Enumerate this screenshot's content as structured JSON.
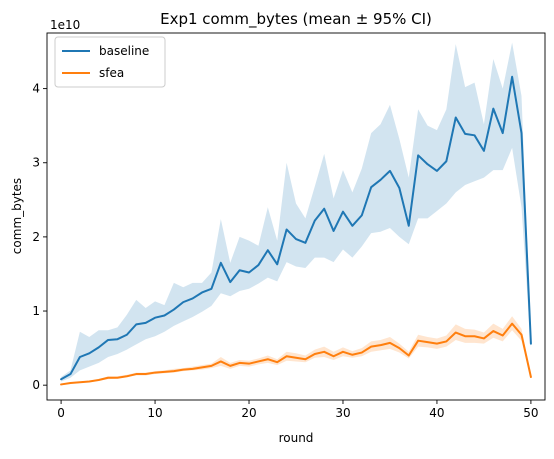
{
  "chart_data": {
    "type": "line",
    "title": "Exp1 comm_bytes (mean ± 95% CI)",
    "xlabel": "round",
    "ylabel": "comm_bytes",
    "y_scale_label": "1e10",
    "xlim": [
      -1.5,
      51.5
    ],
    "ylim": [
      -0.2,
      4.75
    ],
    "x_ticks": [
      0,
      10,
      20,
      30,
      40,
      50
    ],
    "y_ticks": [
      0,
      1,
      2,
      3,
      4
    ],
    "grid": false,
    "legend_position": "top-left",
    "x": [
      0,
      1,
      2,
      3,
      4,
      5,
      6,
      7,
      8,
      9,
      10,
      11,
      12,
      13,
      14,
      15,
      16,
      17,
      18,
      19,
      20,
      21,
      22,
      23,
      24,
      25,
      26,
      27,
      28,
      29,
      30,
      31,
      32,
      33,
      34,
      35,
      36,
      37,
      38,
      39,
      40,
      41,
      42,
      43,
      44,
      45,
      46,
      47,
      48,
      49,
      50
    ],
    "series": [
      {
        "name": "baseline",
        "color": "#1f77b4",
        "band_color": "#1f77b4",
        "values": [
          0.08,
          0.15,
          0.38,
          0.43,
          0.51,
          0.61,
          0.62,
          0.68,
          0.82,
          0.84,
          0.91,
          0.94,
          1.02,
          1.12,
          1.17,
          1.25,
          1.3,
          1.65,
          1.39,
          1.55,
          1.52,
          1.62,
          1.82,
          1.63,
          2.1,
          1.97,
          1.92,
          2.22,
          2.38,
          2.08,
          2.34,
          2.15,
          2.29,
          2.67,
          2.77,
          2.89,
          2.66,
          2.15,
          3.1,
          2.98,
          2.89,
          3.02,
          3.61,
          3.39,
          3.37,
          3.16,
          3.73,
          3.4,
          4.16,
          3.4,
          0.56
        ],
        "ci_low": [
          0.05,
          0.1,
          0.2,
          0.25,
          0.3,
          0.38,
          0.42,
          0.48,
          0.55,
          0.62,
          0.66,
          0.72,
          0.8,
          0.86,
          0.92,
          0.99,
          1.07,
          1.24,
          1.2,
          1.27,
          1.3,
          1.37,
          1.45,
          1.4,
          1.66,
          1.6,
          1.58,
          1.72,
          1.72,
          1.66,
          1.83,
          1.72,
          1.87,
          2.05,
          2.07,
          2.12,
          2.0,
          1.9,
          2.25,
          2.25,
          2.35,
          2.45,
          2.6,
          2.7,
          2.75,
          2.8,
          2.9,
          2.9,
          3.2,
          2.4,
          0.5
        ],
        "ci_high": [
          0.11,
          0.2,
          0.72,
          0.65,
          0.74,
          0.74,
          0.78,
          0.95,
          1.15,
          1.04,
          1.13,
          1.08,
          1.38,
          1.32,
          1.38,
          1.38,
          1.52,
          2.24,
          1.65,
          2.0,
          1.95,
          1.88,
          2.4,
          1.95,
          3.0,
          2.45,
          2.25,
          2.68,
          3.12,
          2.52,
          2.9,
          2.6,
          2.92,
          3.4,
          3.52,
          3.78,
          3.32,
          2.8,
          3.72,
          3.5,
          3.44,
          3.72,
          4.6,
          4.02,
          4.08,
          3.52,
          4.4,
          4.0,
          4.62,
          3.9,
          0.62
        ]
      },
      {
        "name": "sfea",
        "color": "#ff7f0e",
        "band_color": "#ff7f0e",
        "values": [
          0.01,
          0.03,
          0.04,
          0.05,
          0.07,
          0.1,
          0.1,
          0.12,
          0.15,
          0.15,
          0.17,
          0.18,
          0.19,
          0.21,
          0.22,
          0.24,
          0.26,
          0.32,
          0.26,
          0.3,
          0.29,
          0.32,
          0.35,
          0.31,
          0.39,
          0.37,
          0.35,
          0.42,
          0.45,
          0.39,
          0.45,
          0.41,
          0.44,
          0.52,
          0.54,
          0.57,
          0.5,
          0.4,
          0.6,
          0.58,
          0.56,
          0.59,
          0.71,
          0.66,
          0.66,
          0.63,
          0.73,
          0.67,
          0.83,
          0.68,
          0.11
        ],
        "ci_low": [
          0.0,
          0.02,
          0.03,
          0.04,
          0.06,
          0.08,
          0.09,
          0.11,
          0.13,
          0.13,
          0.15,
          0.16,
          0.17,
          0.19,
          0.2,
          0.21,
          0.23,
          0.26,
          0.22,
          0.26,
          0.25,
          0.28,
          0.3,
          0.27,
          0.33,
          0.32,
          0.31,
          0.37,
          0.38,
          0.34,
          0.39,
          0.37,
          0.39,
          0.45,
          0.47,
          0.49,
          0.44,
          0.36,
          0.52,
          0.51,
          0.49,
          0.52,
          0.61,
          0.57,
          0.57,
          0.56,
          0.64,
          0.59,
          0.74,
          0.6,
          0.09
        ],
        "ci_high": [
          0.02,
          0.04,
          0.05,
          0.06,
          0.08,
          0.12,
          0.12,
          0.14,
          0.17,
          0.17,
          0.19,
          0.2,
          0.22,
          0.23,
          0.25,
          0.27,
          0.29,
          0.38,
          0.3,
          0.34,
          0.33,
          0.36,
          0.4,
          0.35,
          0.45,
          0.43,
          0.4,
          0.48,
          0.52,
          0.45,
          0.51,
          0.46,
          0.5,
          0.59,
          0.61,
          0.65,
          0.56,
          0.45,
          0.68,
          0.65,
          0.63,
          0.67,
          0.82,
          0.76,
          0.75,
          0.71,
          0.83,
          0.76,
          0.93,
          0.76,
          0.13
        ]
      }
    ]
  }
}
